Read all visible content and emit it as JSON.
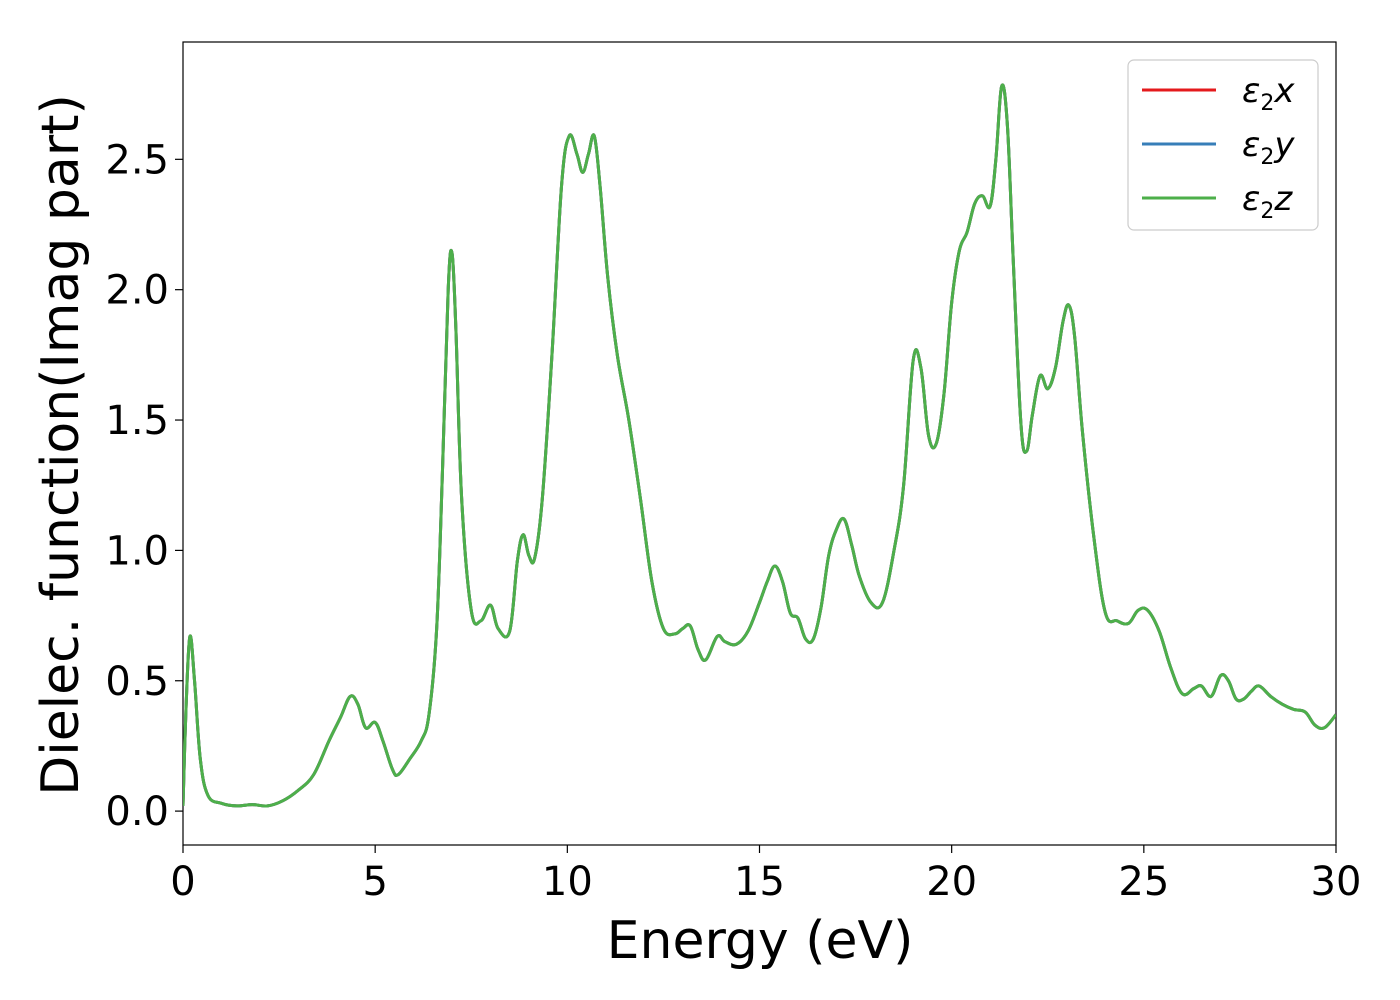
{
  "chart_data": {
    "type": "line",
    "title": "",
    "xlabel": "Energy (eV)",
    "ylabel": "Dielec. function(Imag part)",
    "xlim": [
      0,
      30
    ],
    "ylim": [
      -0.13,
      2.95
    ],
    "xticks": [
      "0",
      "5",
      "10",
      "15",
      "20",
      "25",
      "30"
    ],
    "yticks": [
      "0.0",
      "0.5",
      "1.0",
      "1.5",
      "2.0",
      "2.5"
    ],
    "grid": false,
    "legend_position": "top-right",
    "series": [
      {
        "name": "ε2x",
        "color": "#e41a1c"
      },
      {
        "name": "ε2y",
        "color": "#377eb8"
      },
      {
        "name": "ε2z",
        "color": "#4daf4a"
      }
    ],
    "x": [
      0,
      0.08,
      0.18,
      0.3,
      0.45,
      0.65,
      1.0,
      1.4,
      1.8,
      2.2,
      2.6,
      3.0,
      3.4,
      3.8,
      4.1,
      4.35,
      4.55,
      4.75,
      5.0,
      5.2,
      5.45,
      5.6,
      5.9,
      6.2,
      6.4,
      6.6,
      6.75,
      6.9,
      7.0,
      7.1,
      7.25,
      7.5,
      7.75,
      8.0,
      8.2,
      8.5,
      8.7,
      8.85,
      9.0,
      9.15,
      9.35,
      9.6,
      9.85,
      10.05,
      10.25,
      10.4,
      10.55,
      10.7,
      10.85,
      11.05,
      11.3,
      11.6,
      11.9,
      12.2,
      12.5,
      12.8,
      13.0,
      13.2,
      13.4,
      13.6,
      13.9,
      14.1,
      14.4,
      14.7,
      15.0,
      15.2,
      15.4,
      15.6,
      15.8,
      16.0,
      16.2,
      16.4,
      16.6,
      16.8,
      17.0,
      17.2,
      17.4,
      17.6,
      17.9,
      18.2,
      18.5,
      18.75,
      19.0,
      19.2,
      19.4,
      19.6,
      19.8,
      20.0,
      20.2,
      20.4,
      20.6,
      20.8,
      21.0,
      21.15,
      21.3,
      21.45,
      21.6,
      21.8,
      21.95,
      22.1,
      22.3,
      22.5,
      22.7,
      22.9,
      23.05,
      23.2,
      23.4,
      23.7,
      24.0,
      24.3,
      24.6,
      24.85,
      25.1,
      25.4,
      25.7,
      26.0,
      26.3,
      26.5,
      26.75,
      27.0,
      27.2,
      27.4,
      27.6,
      27.8,
      28.0,
      28.3,
      28.6,
      28.9,
      29.2,
      29.45,
      29.7,
      30.0
    ],
    "values": [
      0.02,
      0.4,
      0.67,
      0.5,
      0.2,
      0.06,
      0.03,
      0.02,
      0.025,
      0.02,
      0.04,
      0.08,
      0.14,
      0.27,
      0.36,
      0.44,
      0.41,
      0.32,
      0.34,
      0.27,
      0.16,
      0.14,
      0.2,
      0.27,
      0.37,
      0.7,
      1.3,
      2.0,
      2.14,
      1.85,
      1.2,
      0.77,
      0.73,
      0.79,
      0.7,
      0.69,
      0.96,
      1.06,
      0.98,
      0.97,
      1.2,
      1.75,
      2.4,
      2.59,
      2.52,
      2.45,
      2.52,
      2.59,
      2.4,
      2.05,
      1.75,
      1.5,
      1.2,
      0.88,
      0.7,
      0.68,
      0.7,
      0.71,
      0.62,
      0.58,
      0.67,
      0.65,
      0.64,
      0.69,
      0.8,
      0.88,
      0.94,
      0.88,
      0.76,
      0.74,
      0.66,
      0.66,
      0.78,
      0.98,
      1.08,
      1.12,
      1.02,
      0.9,
      0.8,
      0.8,
      1.0,
      1.25,
      1.73,
      1.7,
      1.44,
      1.41,
      1.6,
      1.95,
      2.15,
      2.22,
      2.33,
      2.36,
      2.32,
      2.5,
      2.78,
      2.63,
      2.12,
      1.49,
      1.38,
      1.52,
      1.67,
      1.62,
      1.7,
      1.88,
      1.94,
      1.82,
      1.46,
      1.05,
      0.76,
      0.73,
      0.72,
      0.77,
      0.77,
      0.69,
      0.55,
      0.45,
      0.47,
      0.48,
      0.44,
      0.52,
      0.5,
      0.43,
      0.43,
      0.46,
      0.48,
      0.44,
      0.41,
      0.39,
      0.38,
      0.33,
      0.32,
      0.37
    ]
  }
}
